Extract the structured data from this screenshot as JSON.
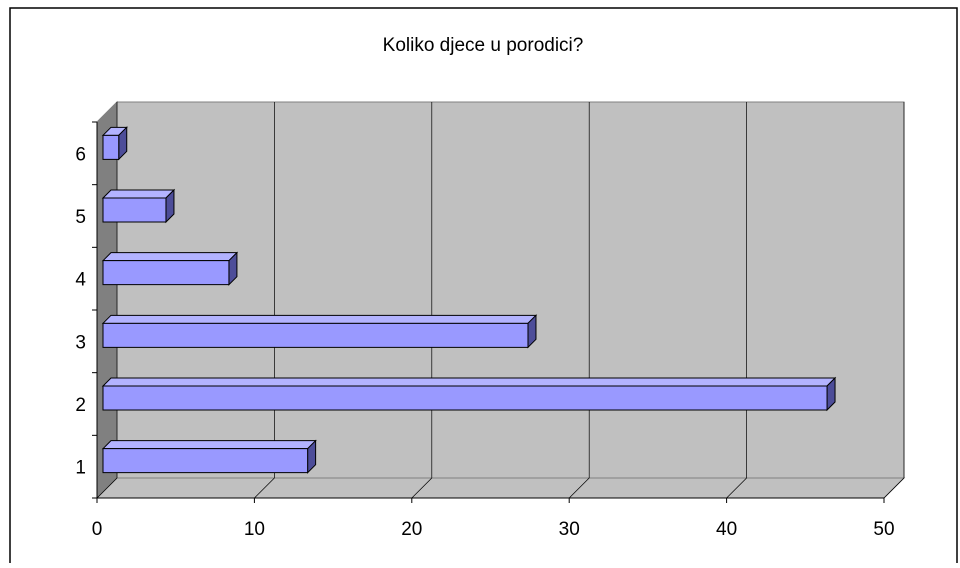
{
  "chart_data": {
    "type": "bar",
    "orientation": "horizontal",
    "title": "Koliko djece u porodici?",
    "categories": [
      "1",
      "2",
      "3",
      "4",
      "5",
      "6"
    ],
    "values": [
      13,
      46,
      27,
      8,
      4,
      1
    ],
    "color": "#9999ff",
    "xlim": [
      0,
      50
    ],
    "xticks": [
      0,
      10,
      20,
      30,
      40,
      50
    ],
    "grid": true
  }
}
